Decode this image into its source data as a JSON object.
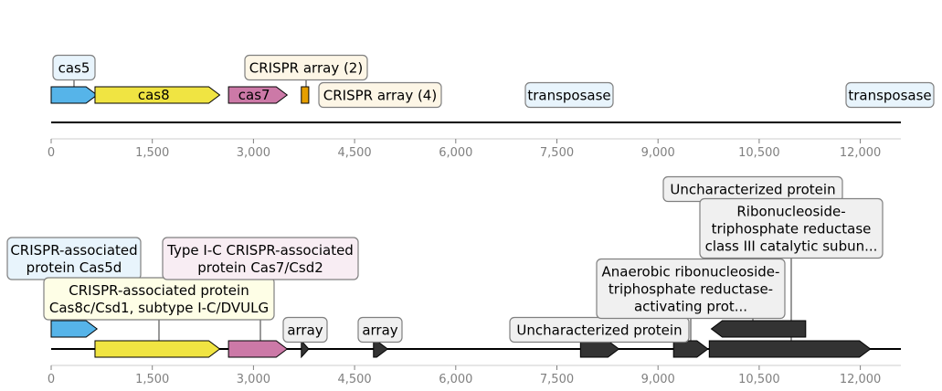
{
  "tracks": [
    {
      "id": "top",
      "axis_ticks": [
        "0",
        "1,500",
        "3,000",
        "4,500",
        "6,000",
        "7,500",
        "9,000",
        "10,500",
        "12,000"
      ],
      "features": [
        {
          "name": "cas5",
          "start": 0,
          "end": 680,
          "strand": 1,
          "color": "#56b4e9",
          "label": "cas5",
          "label_style": "box",
          "label_color": "#e8f4fc"
        },
        {
          "name": "cas8",
          "start": 650,
          "end": 2500,
          "strand": 1,
          "color": "#f0e442",
          "label": "cas8",
          "label_style": "inline"
        },
        {
          "name": "cas7",
          "start": 2630,
          "end": 3500,
          "strand": 1,
          "color": "#cc79a7",
          "label": "cas7",
          "label_style": "inline"
        },
        {
          "name": "crispr-array-2",
          "start": 3710,
          "end": 3820,
          "strand": 0,
          "color": "#e69f00",
          "label": "CRISPR array (2)",
          "label_style": "box",
          "label_color": "#fdf6e6"
        },
        {
          "name": "crispr-array-4",
          "start": 4780,
          "end": 4990,
          "strand": 0,
          "color": "#e69f00",
          "label": "CRISPR array (4)",
          "label_style": "box",
          "label_color": "#fdf6e6"
        },
        {
          "name": "transposase-1",
          "start": 7560,
          "end": 7870,
          "strand": 1,
          "color": "#0072b2",
          "label": "transposase",
          "label_style": "box",
          "label_color": "#e8f4fc"
        },
        {
          "name": "transposase-2",
          "start": 12280,
          "end": 12600,
          "strand": -1,
          "color": "#0072b2",
          "label": "transposase",
          "label_style": "box",
          "label_color": "#e8f4fc"
        }
      ]
    },
    {
      "id": "bottom",
      "axis_ticks": [
        "0",
        "1,500",
        "3,000",
        "4,500",
        "6,000",
        "7,500",
        "9,000",
        "10,500",
        "12,000"
      ],
      "features": [
        {
          "name": "cas5d",
          "start": 0,
          "end": 680,
          "strand": 1,
          "color": "#56b4e9",
          "label": "CRISPR-associated\nprotein Cas5d",
          "label_style": "box",
          "label_color": "#e8f4fc"
        },
        {
          "name": "cas8c",
          "start": 650,
          "end": 2500,
          "strand": 1,
          "color": "#f0e442",
          "label": "CRISPR-associated protein\nCas8c/Csd1, subtype I-C/DVULG",
          "label_style": "box",
          "label_color": "#fefee6"
        },
        {
          "name": "cas7-csd2",
          "start": 2630,
          "end": 3500,
          "strand": 1,
          "color": "#cc79a7",
          "label": "Type I-C CRISPR-associated\nprotein Cas7/Csd2",
          "label_style": "box",
          "label_color": "#f8edf3"
        },
        {
          "name": "array-1",
          "start": 3710,
          "end": 3820,
          "strand": 1,
          "color": "#333333",
          "label": "array",
          "label_style": "box",
          "label_color": "#f0f0f0"
        },
        {
          "name": "array-2",
          "start": 4780,
          "end": 4990,
          "strand": 1,
          "color": "#333333",
          "label": "array",
          "label_style": "box",
          "label_color": "#f0f0f0"
        },
        {
          "name": "uncharacterized-1",
          "start": 7850,
          "end": 8420,
          "strand": 1,
          "color": "#333333",
          "label": "Uncharacterized protein",
          "label_style": "box",
          "label_color": "#f0f0f0"
        },
        {
          "name": "anaerobic-rnr-act",
          "start": 9230,
          "end": 9740,
          "strand": 1,
          "color": "#333333",
          "label": "Anaerobic ribonucleoside-\ntriphosphate reductase-\nactivating prot...",
          "label_style": "box",
          "label_color": "#f0f0f0"
        },
        {
          "name": "uncharacterized-2",
          "start": 9790,
          "end": 11190,
          "strand": -1,
          "color": "#333333",
          "label": "Uncharacterized protein",
          "label_style": "box",
          "label_color": "#f0f0f0"
        },
        {
          "name": "rnr-class3",
          "start": 9760,
          "end": 12150,
          "strand": 1,
          "color": "#333333",
          "label": "Ribonucleoside-\ntriphosphate reductase\nclass III catalytic subun...",
          "label_style": "box",
          "label_color": "#f0f0f0"
        }
      ]
    }
  ]
}
